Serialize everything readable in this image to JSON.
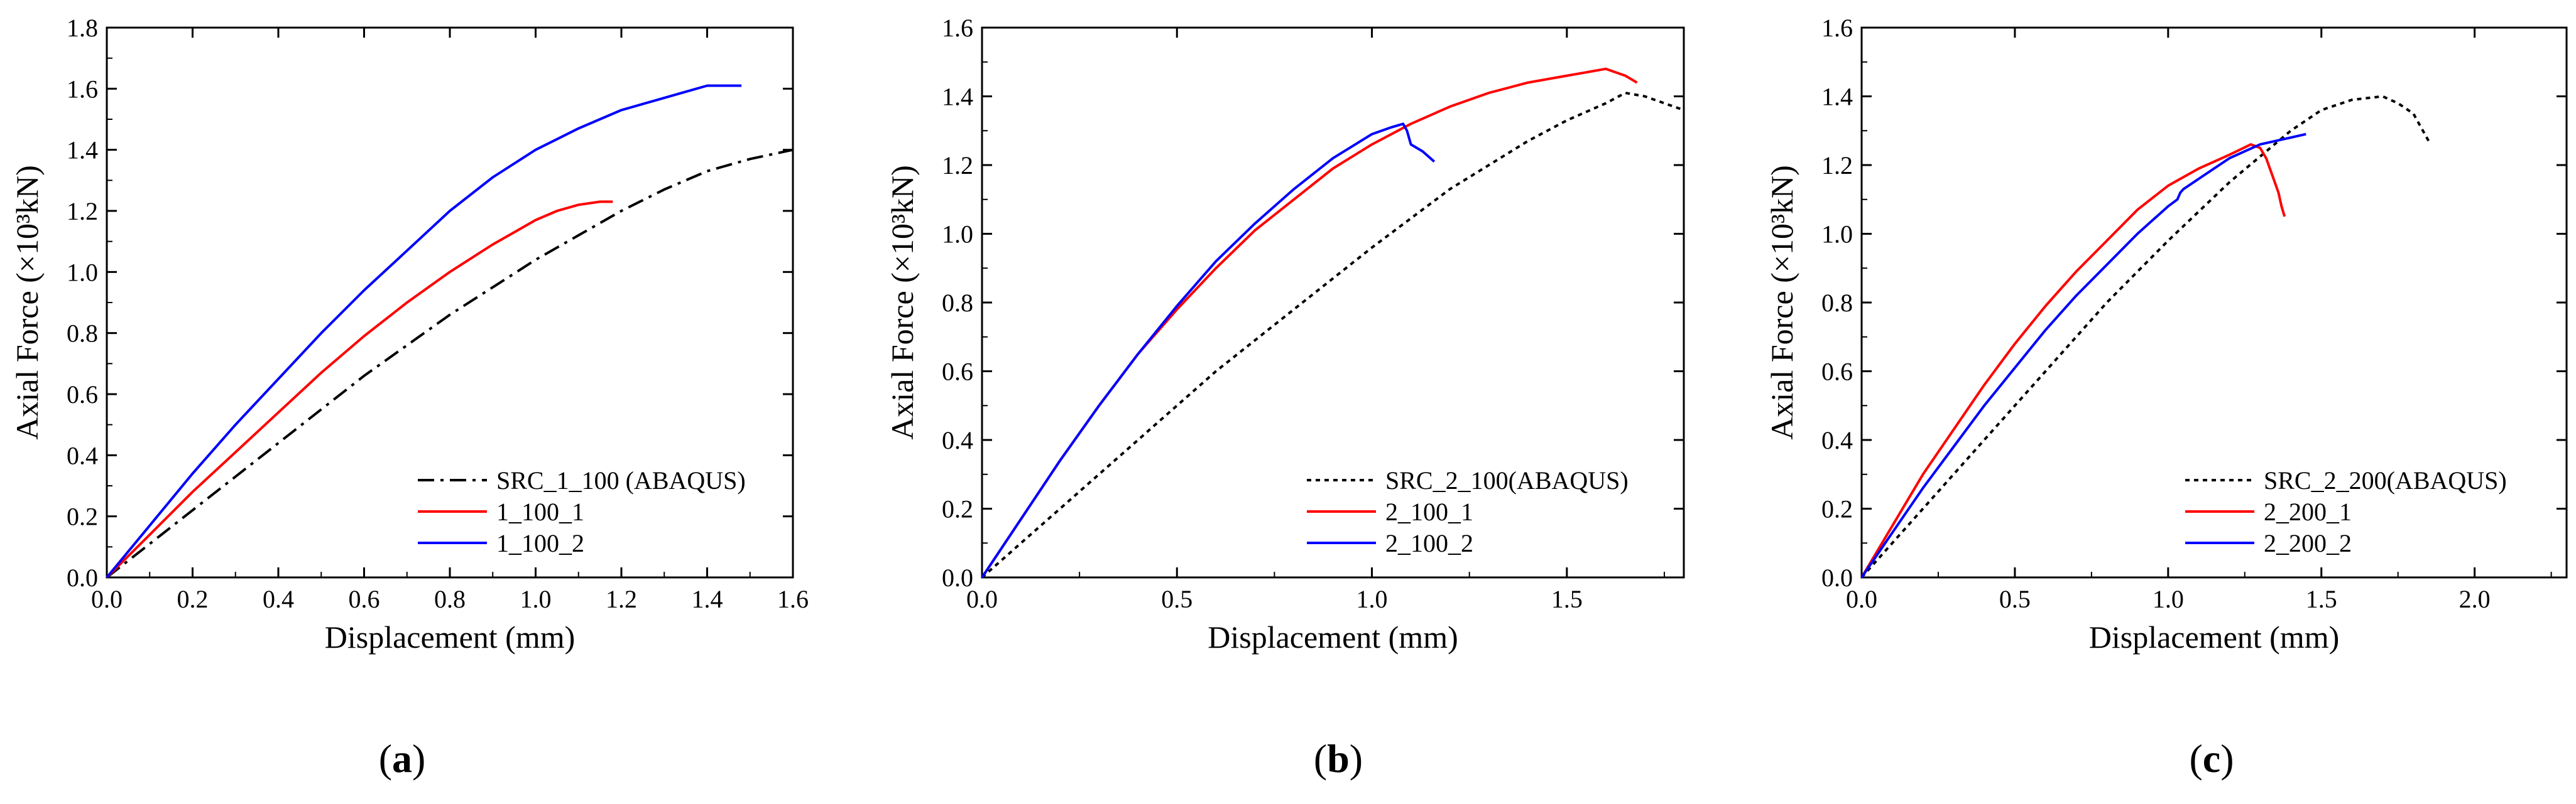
{
  "chart_data": [
    {
      "type": "line",
      "panel_label": "(a)",
      "panel_letter": "a",
      "xlabel": "Displacement (mm)",
      "ylabel": "Axial Force (×10³kN)",
      "xlim": [
        0.0,
        1.6
      ],
      "ylim": [
        0.0,
        1.8
      ],
      "xticks": [
        0.0,
        0.2,
        0.4,
        0.6,
        0.8,
        1.0,
        1.2,
        1.4,
        1.6
      ],
      "xtick_labels": [
        "0.0",
        "0.2",
        "0.4",
        "0.6",
        "0.8",
        "1.0",
        "1.2",
        "1.4",
        "1.6"
      ],
      "yticks": [
        0.0,
        0.2,
        0.4,
        0.6,
        0.8,
        1.0,
        1.2,
        1.4,
        1.6,
        1.8
      ],
      "ytick_labels": [
        "0.0",
        "0.2",
        "0.4",
        "0.6",
        "0.8",
        "1.0",
        "1.2",
        "1.4",
        "1.6",
        "1.8"
      ],
      "grid": false,
      "legend_position": "bottom-right",
      "series": [
        {
          "name": "SRC_1_100 (ABAQUS)",
          "color": "#000000",
          "style": "dashdot",
          "x": [
            0,
            0.1,
            0.2,
            0.3,
            0.4,
            0.5,
            0.6,
            0.7,
            0.8,
            0.9,
            1.0,
            1.1,
            1.2,
            1.3,
            1.4,
            1.5,
            1.6
          ],
          "y": [
            0,
            0.11,
            0.22,
            0.33,
            0.44,
            0.55,
            0.66,
            0.76,
            0.86,
            0.95,
            1.04,
            1.12,
            1.2,
            1.27,
            1.33,
            1.37,
            1.4
          ]
        },
        {
          "name": "1_100_1",
          "color": "#ff0000",
          "style": "solid",
          "x": [
            0,
            0.1,
            0.2,
            0.3,
            0.4,
            0.5,
            0.6,
            0.7,
            0.8,
            0.9,
            0.95,
            1.0,
            1.05,
            1.1,
            1.15,
            1.18
          ],
          "y": [
            0,
            0.14,
            0.28,
            0.41,
            0.54,
            0.67,
            0.79,
            0.9,
            1.0,
            1.09,
            1.13,
            1.17,
            1.2,
            1.22,
            1.23,
            1.23
          ]
        },
        {
          "name": "1_100_2",
          "color": "#0000ff",
          "style": "solid",
          "x": [
            0,
            0.1,
            0.2,
            0.3,
            0.4,
            0.5,
            0.6,
            0.7,
            0.8,
            0.9,
            1.0,
            1.1,
            1.2,
            1.3,
            1.35,
            1.4,
            1.48
          ],
          "y": [
            0,
            0.17,
            0.34,
            0.5,
            0.65,
            0.8,
            0.94,
            1.07,
            1.2,
            1.31,
            1.4,
            1.47,
            1.53,
            1.57,
            1.59,
            1.61,
            1.61
          ]
        }
      ]
    },
    {
      "type": "line",
      "panel_label": "(b)",
      "panel_letter": "b",
      "xlabel": "Displacement (mm)",
      "ylabel": "Axial Force (×10³kN)",
      "xlim": [
        0.0,
        1.8
      ],
      "ylim": [
        0.0,
        1.6
      ],
      "xticks": [
        0.0,
        0.5,
        1.0,
        1.5
      ],
      "xtick_labels": [
        "0.0",
        "0.5",
        "1.0",
        "1.5"
      ],
      "yticks": [
        0.0,
        0.2,
        0.4,
        0.6,
        0.8,
        1.0,
        1.2,
        1.4,
        1.6
      ],
      "ytick_labels": [
        "0.0",
        "0.2",
        "0.4",
        "0.6",
        "0.8",
        "1.0",
        "1.2",
        "1.4",
        "1.6"
      ],
      "grid": false,
      "legend_position": "bottom-right",
      "series": [
        {
          "name": "SRC_2_100(ABAQUS)",
          "color": "#000000",
          "style": "dotted",
          "x": [
            0,
            0.2,
            0.4,
            0.6,
            0.8,
            1.0,
            1.2,
            1.4,
            1.5,
            1.6,
            1.65,
            1.7,
            1.75,
            1.8
          ],
          "y": [
            0,
            0.2,
            0.4,
            0.6,
            0.78,
            0.96,
            1.13,
            1.27,
            1.33,
            1.38,
            1.41,
            1.4,
            1.38,
            1.36
          ]
        },
        {
          "name": "2_100_1",
          "color": "#ff0000",
          "style": "solid",
          "x": [
            0,
            0.1,
            0.2,
            0.3,
            0.4,
            0.5,
            0.6,
            0.7,
            0.8,
            0.9,
            1.0,
            1.1,
            1.2,
            1.3,
            1.4,
            1.5,
            1.55,
            1.6,
            1.65,
            1.68
          ],
          "y": [
            0,
            0.17,
            0.34,
            0.5,
            0.65,
            0.78,
            0.9,
            1.01,
            1.1,
            1.19,
            1.26,
            1.32,
            1.37,
            1.41,
            1.44,
            1.46,
            1.47,
            1.48,
            1.46,
            1.44
          ]
        },
        {
          "name": "2_100_2",
          "color": "#0000ff",
          "style": "solid",
          "x": [
            0,
            0.1,
            0.2,
            0.3,
            0.4,
            0.5,
            0.6,
            0.7,
            0.8,
            0.9,
            1.0,
            1.05,
            1.08,
            1.09,
            1.1,
            1.13,
            1.16
          ],
          "y": [
            0,
            0.17,
            0.34,
            0.5,
            0.65,
            0.79,
            0.92,
            1.03,
            1.13,
            1.22,
            1.29,
            1.31,
            1.32,
            1.3,
            1.26,
            1.24,
            1.21
          ]
        }
      ]
    },
    {
      "type": "line",
      "panel_label": "(c)",
      "panel_letter": "c",
      "xlabel": "Displacement (mm)",
      "ylabel": "Axial Force (×10³kN)",
      "xlim": [
        0.0,
        2.3
      ],
      "ylim": [
        0.0,
        1.6
      ],
      "xticks": [
        0.0,
        0.5,
        1.0,
        1.5,
        2.0
      ],
      "xtick_labels": [
        "0.0",
        "0.5",
        "1.0",
        "1.5",
        "2.0"
      ],
      "yticks": [
        0.0,
        0.2,
        0.4,
        0.6,
        0.8,
        1.0,
        1.2,
        1.4,
        1.6
      ],
      "ytick_labels": [
        "0.0",
        "0.2",
        "0.4",
        "0.6",
        "0.8",
        "1.0",
        "1.2",
        "1.4",
        "1.6"
      ],
      "grid": false,
      "legend_position": "bottom-right",
      "series": [
        {
          "name": "SRC_2_200(ABAQUS)",
          "color": "#000000",
          "style": "dotted",
          "x": [
            0,
            0.2,
            0.4,
            0.6,
            0.8,
            1.0,
            1.2,
            1.4,
            1.5,
            1.6,
            1.7,
            1.75,
            1.8,
            1.85
          ],
          "y": [
            0,
            0.2,
            0.4,
            0.6,
            0.8,
            0.98,
            1.15,
            1.3,
            1.36,
            1.39,
            1.4,
            1.38,
            1.35,
            1.27
          ]
        },
        {
          "name": "2_200_1",
          "color": "#ff0000",
          "style": "solid",
          "x": [
            0,
            0.1,
            0.2,
            0.3,
            0.4,
            0.5,
            0.6,
            0.7,
            0.8,
            0.9,
            1.0,
            1.1,
            1.2,
            1.27,
            1.3,
            1.32,
            1.34,
            1.36,
            1.37,
            1.38
          ],
          "y": [
            0,
            0.15,
            0.3,
            0.43,
            0.56,
            0.68,
            0.79,
            0.89,
            0.98,
            1.07,
            1.14,
            1.19,
            1.23,
            1.26,
            1.25,
            1.22,
            1.17,
            1.12,
            1.08,
            1.05
          ]
        },
        {
          "name": "2_200_2",
          "color": "#0000ff",
          "style": "solid",
          "x": [
            0,
            0.1,
            0.2,
            0.3,
            0.4,
            0.5,
            0.6,
            0.7,
            0.8,
            0.9,
            1.0,
            1.03,
            1.04,
            1.05,
            1.1,
            1.2,
            1.3,
            1.4,
            1.45
          ],
          "y": [
            0,
            0.13,
            0.26,
            0.38,
            0.5,
            0.61,
            0.72,
            0.82,
            0.91,
            1.0,
            1.08,
            1.1,
            1.12,
            1.13,
            1.16,
            1.22,
            1.26,
            1.28,
            1.29
          ]
        }
      ]
    }
  ]
}
